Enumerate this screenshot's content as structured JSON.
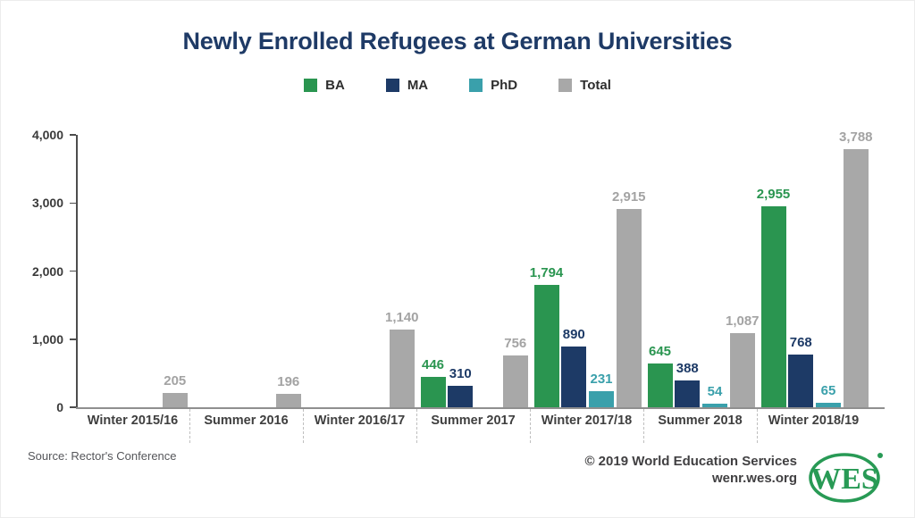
{
  "title": "Newly Enrolled Refugees at German Universities",
  "chart_data": {
    "type": "bar",
    "title": "Newly Enrolled Refugees at German Universities",
    "categories": [
      "Winter 2015/16",
      "Summer 2016",
      "Winter 2016/17",
      "Summer 2017",
      "Winter 2017/18",
      "Summer 2018",
      "Winter 2018/19"
    ],
    "series": [
      {
        "name": "BA",
        "color": "#2a9550",
        "label_color": "#2a9550",
        "values": [
          null,
          null,
          null,
          446,
          1794,
          645,
          2955
        ]
      },
      {
        "name": "MA",
        "color": "#1d3a66",
        "label_color": "#1d3a66",
        "values": [
          null,
          null,
          null,
          310,
          890,
          388,
          768
        ]
      },
      {
        "name": "PhD",
        "color": "#3aa0ab",
        "label_color": "#3aa0ab",
        "values": [
          null,
          null,
          null,
          null,
          231,
          54,
          65
        ]
      },
      {
        "name": "Total",
        "color": "#a8a8a8",
        "label_color": "#a3a3a3",
        "values": [
          205,
          196,
          1140,
          756,
          2915,
          1087,
          3788
        ]
      }
    ],
    "ylim": [
      0,
      4000
    ],
    "yticks": [
      0,
      1000,
      2000,
      3000,
      4000
    ],
    "grid": false,
    "legend_position": "top",
    "xlabel": "",
    "ylabel": ""
  },
  "footer": {
    "source": "Source: Rector's Conference",
    "copyright": "© 2019 World Education Services",
    "website": "wenr.wes.org"
  },
  "logo": {
    "text": "WES",
    "color": "#289a55"
  },
  "colors": {
    "title": "#1e3a66",
    "axis_text": "#3a3a3a",
    "category_text": "#3f3f3f"
  }
}
